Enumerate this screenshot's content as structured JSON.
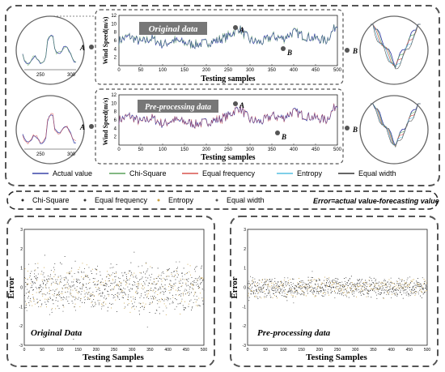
{
  "top": {
    "panel1": {
      "title": "Original data",
      "ylabel": "Wind Speed(m/s)",
      "xlabel": "Testing samples",
      "xticks": [
        "0",
        "50",
        "100",
        "150",
        "200",
        "250",
        "300",
        "350",
        "400",
        "450",
        "500"
      ],
      "yticks": [
        "2",
        "4",
        "6",
        "8",
        "10",
        "12"
      ],
      "marker_a": "A",
      "marker_b": "B",
      "zoom_left_ticks": [
        "250",
        "300"
      ]
    },
    "panel2": {
      "title": "Pre-processing data",
      "ylabel": "Wind Speed(m/s)",
      "xlabel": "Testing samples",
      "xticks": [
        "0",
        "50",
        "100",
        "150",
        "200",
        "250",
        "300",
        "350",
        "400",
        "450",
        "500"
      ],
      "yticks": [
        "2",
        "4",
        "6",
        "8",
        "10",
        "12"
      ],
      "marker_a": "A",
      "marker_b": "B",
      "zoom_left_ticks": [
        "250",
        "300"
      ]
    },
    "legend": [
      {
        "label": "Actual value",
        "color": "#3a44a8"
      },
      {
        "label": "Chi-Square",
        "color": "#5aa05a"
      },
      {
        "label": "Equal frequency",
        "color": "#d9534f"
      },
      {
        "label": "Entropy",
        "color": "#55bfe0"
      },
      {
        "label": "Equal width",
        "color": "#333333"
      }
    ]
  },
  "error_legend": {
    "items": [
      {
        "label": "Chi-Square",
        "color": "#222222"
      },
      {
        "label": "Equal frequency",
        "color": "#333333"
      },
      {
        "label": "Entropy",
        "color": "#c8a040"
      },
      {
        "label": "Equal width",
        "color": "#555555"
      }
    ],
    "formula": "Error=actual value-forecasting value"
  },
  "bottom": {
    "left": {
      "title": "Original Data",
      "ylabel": "Error",
      "xlabel": "Testing Samples",
      "xticks": [
        "0",
        "50",
        "100",
        "150",
        "200",
        "250",
        "300",
        "350",
        "400",
        "450",
        "500"
      ],
      "yticks": [
        "3",
        "2",
        "1",
        "0",
        "-1",
        "-2",
        "-3"
      ]
    },
    "right": {
      "title": "Pre-processing data",
      "ylabel": "Error",
      "xlabel": "Testing Samples",
      "xticks": [
        "0",
        "50",
        "100",
        "150",
        "200",
        "250",
        "300",
        "350",
        "400",
        "450",
        "500"
      ],
      "yticks": [
        "3",
        "2",
        "1",
        "0",
        "-1",
        "-2",
        "-3"
      ]
    }
  },
  "chart_data": [
    {
      "type": "line",
      "title": "Original data",
      "xlabel": "Testing samples",
      "ylabel": "Wind Speed(m/s)",
      "xlim": [
        0,
        500
      ],
      "ylim": [
        0,
        12
      ],
      "series": [
        {
          "name": "Actual value",
          "x": [
            0,
            25,
            50,
            75,
            100,
            125,
            150,
            175,
            200,
            225,
            250,
            275,
            300,
            325,
            350,
            375,
            400,
            425,
            450,
            475,
            500
          ],
          "values": [
            6,
            7,
            5.5,
            6.5,
            5,
            6,
            5.5,
            5,
            5.5,
            6,
            7,
            9,
            6,
            5.5,
            7,
            6.5,
            8,
            7,
            6.5,
            6,
            10
          ]
        }
      ]
    },
    {
      "type": "line",
      "title": "Pre-processing data",
      "xlabel": "Testing samples",
      "ylabel": "Wind Speed(m/s)",
      "xlim": [
        0,
        500
      ],
      "ylim": [
        0,
        12
      ],
      "series": [
        {
          "name": "Actual value",
          "x": [
            0,
            25,
            50,
            75,
            100,
            125,
            150,
            175,
            200,
            225,
            250,
            275,
            300,
            325,
            350,
            375,
            400,
            425,
            450,
            475,
            500
          ],
          "values": [
            6,
            7,
            5.5,
            6.5,
            5,
            6,
            5.5,
            5,
            5.5,
            6,
            7,
            9,
            6,
            5.5,
            7,
            6.5,
            8,
            7,
            6.5,
            6,
            10
          ]
        }
      ]
    },
    {
      "type": "scatter",
      "title": "Original Data",
      "xlabel": "Testing Samples",
      "ylabel": "Error",
      "xlim": [
        0,
        500
      ],
      "ylim": [
        -3,
        3
      ],
      "spread": 1.2
    },
    {
      "type": "scatter",
      "title": "Pre-processing data",
      "xlabel": "Testing Samples",
      "ylabel": "Error",
      "xlim": [
        0,
        500
      ],
      "ylim": [
        -3,
        3
      ],
      "spread": 0.5
    }
  ]
}
